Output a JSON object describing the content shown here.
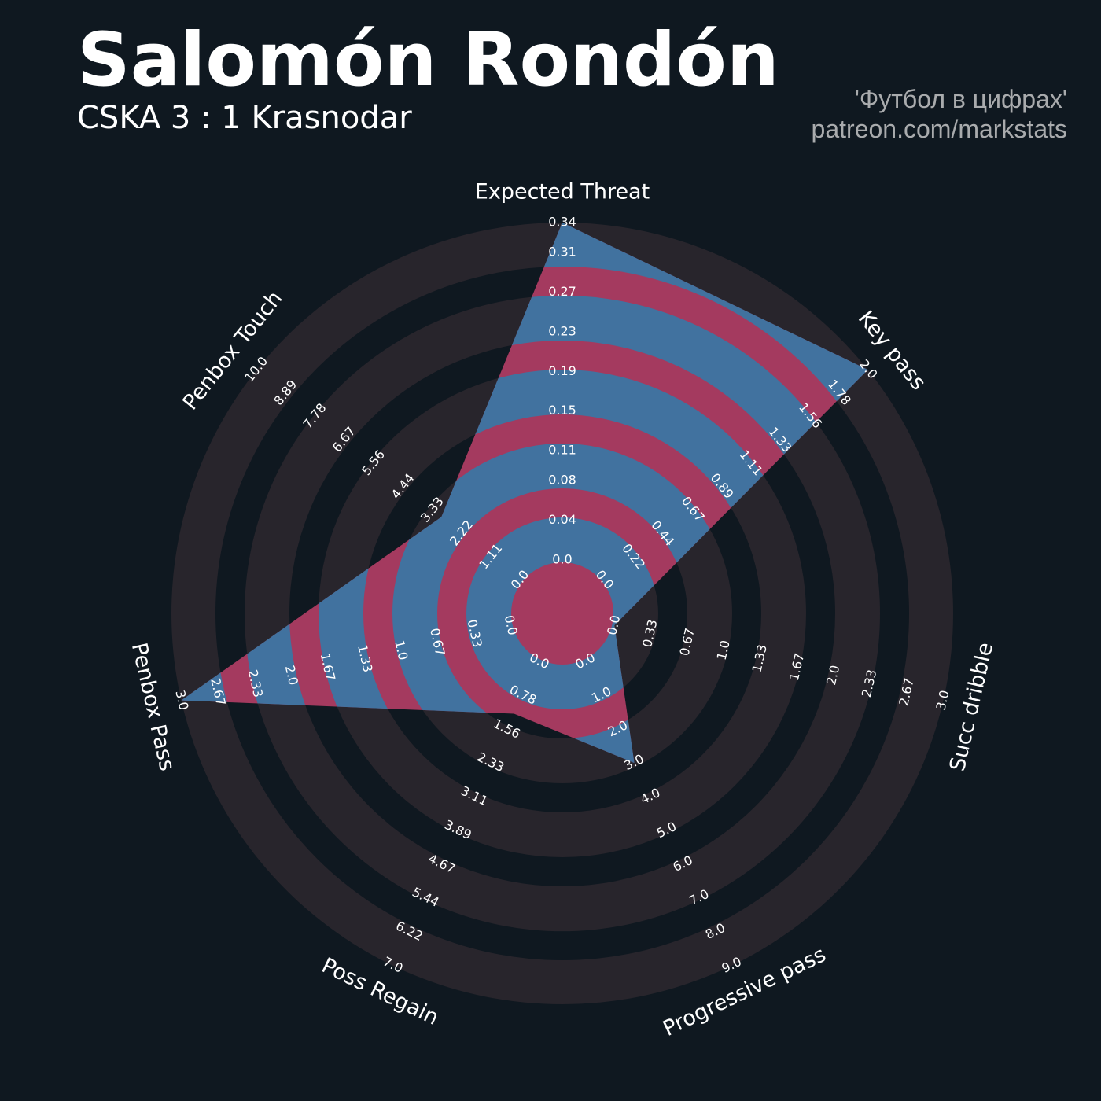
{
  "chart_data": {
    "type": "radar",
    "title": "Salomón Rondón",
    "subtitle": "CSKA 3 : 1 Krasnodar",
    "annotations": [
      "'Футбол в цифрах'",
      "patreon.com/markstats"
    ],
    "categories": [
      "Expected Threat",
      "Key pass",
      "Succ dribble",
      "Progressive pass",
      "Poss Regain",
      "Penbox Pass",
      "Penbox Touch"
    ],
    "values": [
      0.34,
      2.0,
      0.0,
      3.0,
      1.2,
      3.0,
      3.0
    ],
    "colors": [
      "#41729f",
      "#a43a5f"
    ],
    "axes": [
      {
        "lim": [
          0,
          0.34
        ],
        "ticks": [
          {
            "value": 0,
            "label": "0.0"
          },
          0.04,
          0.08,
          0.11,
          0.15,
          0.19,
          0.23,
          0.27,
          0.31,
          0.34
        ]
      },
      {
        "lim": [
          0,
          2
        ],
        "ticks": [
          {
            "value": 0,
            "label": "0.0"
          },
          0.22,
          0.44,
          0.67,
          0.89,
          1.11,
          1.33,
          1.56,
          1.78,
          {
            "value": 2,
            "label": "2.0"
          }
        ]
      },
      {
        "lim": [
          0,
          3
        ],
        "ticks": [
          {
            "value": 0,
            "label": "0.0"
          },
          0.33,
          0.67,
          {
            "value": 1,
            "label": "1.0"
          },
          1.33,
          1.67,
          {
            "value": 2,
            "label": "2.0"
          },
          2.33,
          2.67,
          {
            "value": 3,
            "label": "3.0"
          }
        ]
      },
      {
        "lim": [
          0,
          9
        ],
        "ticks": [
          {
            "value": 0,
            "label": "0.0"
          },
          {
            "value": 1,
            "label": "1.0"
          },
          {
            "value": 2,
            "label": "2.0"
          },
          {
            "value": 3,
            "label": "3.0"
          },
          {
            "value": 4,
            "label": "4.0"
          },
          {
            "value": 5,
            "label": "5.0"
          },
          {
            "value": 6,
            "label": "6.0"
          },
          {
            "value": 7,
            "label": "7.0"
          },
          {
            "value": 8,
            "label": "8.0"
          },
          {
            "value": 9,
            "label": "9.0"
          }
        ]
      },
      {
        "lim": [
          0,
          7
        ],
        "ticks": [
          {
            "value": 0,
            "label": "0.0"
          },
          0.78,
          1.56,
          2.33,
          3.11,
          3.89,
          4.67,
          5.44,
          6.22,
          {
            "value": 7,
            "label": "7.0"
          }
        ]
      },
      {
        "lim": [
          0,
          3
        ],
        "ticks": [
          {
            "value": 0,
            "label": "0.0"
          },
          0.33,
          0.67,
          {
            "value": 1,
            "label": "1.0"
          },
          1.33,
          1.67,
          {
            "value": 2,
            "label": "2.0"
          },
          2.33,
          2.67,
          {
            "value": 3,
            "label": "3.0"
          }
        ]
      },
      {
        "lim": [
          0,
          10
        ],
        "ticks": [
          {
            "value": 0,
            "label": "0.0"
          },
          1.11,
          2.22,
          3.33,
          4.44,
          5.56,
          6.67,
          7.78,
          8.89,
          {
            "value": 10,
            "label": "10.0"
          }
        ]
      }
    ]
  }
}
